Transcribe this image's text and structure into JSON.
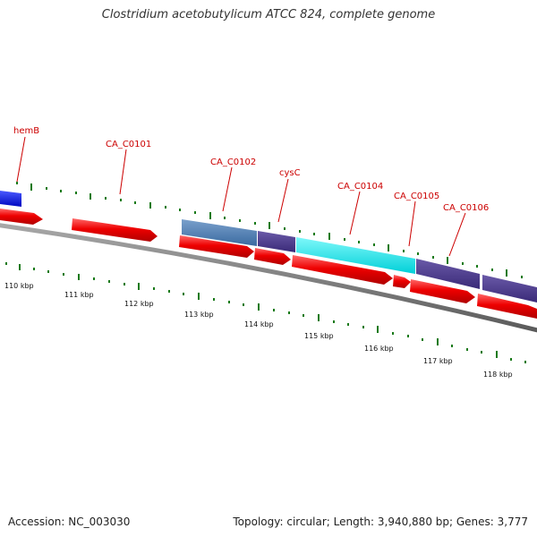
{
  "title": "Clostridium acetobutylicum ATCC 824, complete genome",
  "footer": {
    "accession": "Accession: NC_003030",
    "topology": "Topology: circular; Length: 3,940,880 bp; Genes: 3,777"
  },
  "colors": {
    "cds": "#e8000b",
    "label": "#cc0000",
    "backbone": "#808080",
    "ticks": "#1a7a1a",
    "hemB_feature": "#0010d8",
    "steelblue_feature": "#4a7ab0",
    "purple_feature": "#4a3a8a",
    "cyan_feature": "#00e5e8"
  },
  "gene_labels": [
    "hemB",
    "CA_C0101",
    "CA_C0102",
    "cysC",
    "CA_C0104",
    "CA_C0105",
    "CA_C0106"
  ],
  "scale_labels": [
    "110 kbp",
    "111 kbp",
    "112 kbp",
    "113 kbp",
    "114 kbp",
    "115 kbp",
    "116 kbp",
    "117 kbp",
    "118 kbp"
  ]
}
